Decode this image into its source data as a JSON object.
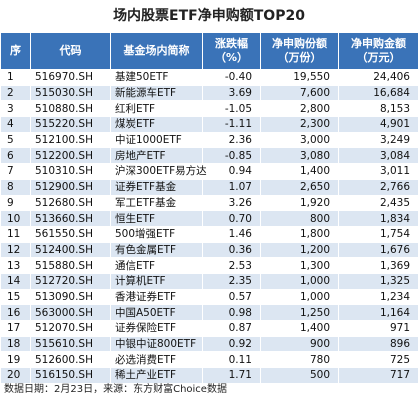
{
  "header": {
    "title": "场内股票ETF净申购额TOP20"
  },
  "table": {
    "columns": [
      [
        "序"
      ],
      [
        "代码"
      ],
      [
        "基金场内简称"
      ],
      [
        "涨跌幅",
        "（%）"
      ],
      [
        "净申购份额",
        "（万份）"
      ],
      [
        "净申购金额",
        "（万元）"
      ]
    ],
    "rows": [
      [
        "1",
        "516970.SH",
        "基建50ETF",
        "-0.40",
        "19,550",
        "24,406"
      ],
      [
        "2",
        "515030.SH",
        "新能源车ETF",
        "3.69",
        "7,600",
        "16,684"
      ],
      [
        "3",
        "510880.SH",
        "红利ETF",
        "-1.05",
        "2,800",
        "8,153"
      ],
      [
        "4",
        "515220.SH",
        "煤炭ETF",
        "-1.11",
        "2,300",
        "4,901"
      ],
      [
        "5",
        "512100.SH",
        "中证1000ETF",
        "2.36",
        "3,000",
        "3,249"
      ],
      [
        "6",
        "512200.SH",
        "房地产ETF",
        "-0.85",
        "3,080",
        "3,084"
      ],
      [
        "7",
        "510310.SH",
        "沪深300ETF易方达",
        "0.94",
        "1,400",
        "3,011"
      ],
      [
        "8",
        "512900.SH",
        "证券ETF基金",
        "1.07",
        "2,650",
        "2,766"
      ],
      [
        "9",
        "512680.SH",
        "军工ETF基金",
        "3.26",
        "1,920",
        "2,435"
      ],
      [
        "10",
        "513660.SH",
        "恒生ETF",
        "0.70",
        "800",
        "1,834"
      ],
      [
        "11",
        "561550.SH",
        "500增强ETF",
        "1.46",
        "1,800",
        "1,754"
      ],
      [
        "12",
        "512400.SH",
        "有色金属ETF",
        "0.36",
        "1,200",
        "1,676"
      ],
      [
        "13",
        "515880.SH",
        "通信ETF",
        "2.53",
        "1,300",
        "1,369"
      ],
      [
        "14",
        "512720.SH",
        "计算机ETF",
        "2.35",
        "1,000",
        "1,325"
      ],
      [
        "15",
        "513090.SH",
        "香港证券ETF",
        "0.57",
        "1,000",
        "1,234"
      ],
      [
        "16",
        "563000.SH",
        "中国A50ETF",
        "0.98",
        "1,250",
        "1,164"
      ],
      [
        "17",
        "512070.SH",
        "证券保险ETF",
        "0.87",
        "1,400",
        "971"
      ],
      [
        "18",
        "515610.SH",
        "中银中证800ETF",
        "0.92",
        "900",
        "896"
      ],
      [
        "19",
        "512600.SH",
        "必选消费ETF",
        "0.11",
        "780",
        "725"
      ],
      [
        "20",
        "516150.SH",
        "稀土产业ETF",
        "1.71",
        "500",
        "717"
      ]
    ]
  },
  "footer": "数据日期：2月23日，来源：东方财富Choice数据"
}
